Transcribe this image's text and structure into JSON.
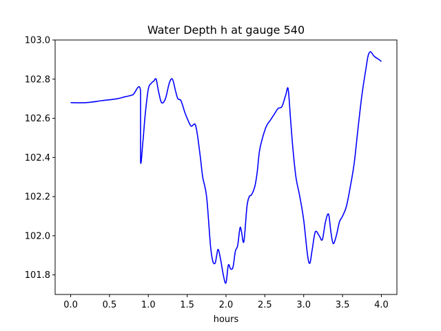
{
  "chart_data": {
    "type": "line",
    "title": "Water Depth h at gauge 540",
    "xlabel": "hours",
    "ylabel": "",
    "xlim": [
      -0.2,
      4.2
    ],
    "ylim": [
      101.7,
      103.0
    ],
    "xticks": [
      0.0,
      0.5,
      1.0,
      1.5,
      2.0,
      2.5,
      3.0,
      3.5,
      4.0
    ],
    "xtick_labels": [
      "0.0",
      "0.5",
      "1.0",
      "1.5",
      "2.0",
      "2.5",
      "3.0",
      "3.5",
      "4.0"
    ],
    "yticks": [
      101.8,
      102.0,
      102.2,
      102.4,
      102.6,
      102.8,
      103.0
    ],
    "ytick_labels": [
      "101.8",
      "102.0",
      "102.2",
      "102.4",
      "102.6",
      "102.8",
      "103.0"
    ],
    "grid": false,
    "legend": "none",
    "series": [
      {
        "color": "#0000ff",
        "x": [
          0.0,
          0.2,
          0.4,
          0.6,
          0.7,
          0.8,
          0.9,
          0.9,
          0.93,
          0.96,
          1.0,
          1.04,
          1.07,
          1.1,
          1.13,
          1.17,
          1.22,
          1.27,
          1.31,
          1.35,
          1.38,
          1.42,
          1.47,
          1.5,
          1.55,
          1.6,
          1.63,
          1.67,
          1.7,
          1.75,
          1.8,
          1.83,
          1.86,
          1.88,
          1.9,
          1.93,
          1.97,
          2.0,
          2.03,
          2.06,
          2.09,
          2.12,
          2.15,
          2.18,
          2.2,
          2.23,
          2.27,
          2.3,
          2.33,
          2.37,
          2.4,
          2.43,
          2.47,
          2.52,
          2.57,
          2.62,
          2.67,
          2.72,
          2.77,
          2.8,
          2.83,
          2.86,
          2.9,
          2.95,
          3.0,
          3.05,
          3.08,
          3.11,
          3.15,
          3.2,
          3.24,
          3.28,
          3.32,
          3.35,
          3.38,
          3.42,
          3.46,
          3.5,
          3.55,
          3.6,
          3.65,
          3.7,
          3.75,
          3.8,
          3.83,
          3.86,
          3.9,
          3.93,
          3.97,
          4.0
        ],
        "y": [
          102.68,
          102.68,
          102.69,
          102.7,
          102.71,
          102.72,
          102.74,
          102.38,
          102.48,
          102.62,
          102.75,
          102.78,
          102.79,
          102.8,
          102.74,
          102.68,
          102.7,
          102.78,
          102.8,
          102.74,
          102.7,
          102.69,
          102.63,
          102.6,
          102.56,
          102.57,
          102.52,
          102.4,
          102.3,
          102.2,
          101.95,
          101.87,
          101.86,
          101.9,
          101.93,
          101.88,
          101.79,
          101.76,
          101.85,
          101.83,
          101.84,
          101.92,
          101.95,
          102.04,
          102.02,
          101.97,
          102.15,
          102.2,
          102.21,
          102.25,
          102.32,
          102.43,
          102.5,
          102.56,
          102.59,
          102.62,
          102.65,
          102.66,
          102.72,
          102.75,
          102.6,
          102.45,
          102.3,
          102.2,
          102.08,
          101.9,
          101.86,
          101.93,
          102.02,
          102.0,
          101.98,
          102.07,
          102.11,
          102.02,
          101.96,
          102.0,
          102.07,
          102.1,
          102.15,
          102.25,
          102.37,
          102.55,
          102.72,
          102.85,
          102.92,
          102.94,
          102.92,
          102.91,
          102.9,
          102.89
        ]
      }
    ]
  }
}
